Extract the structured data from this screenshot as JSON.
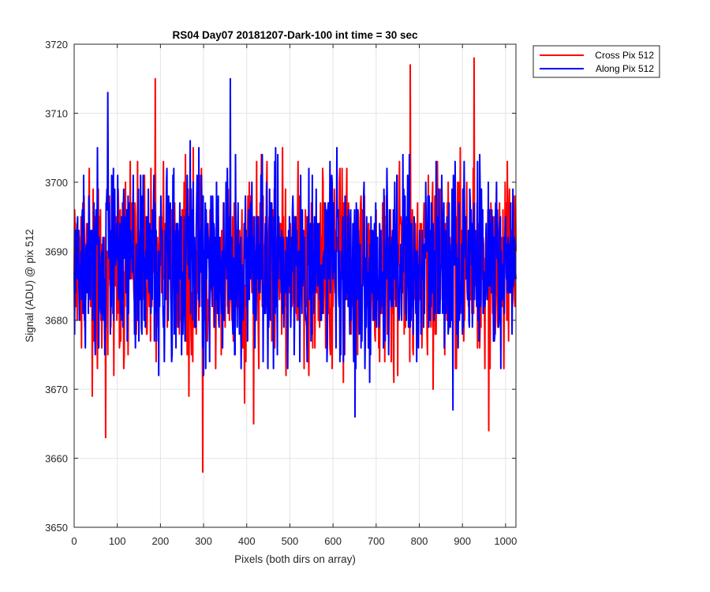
{
  "chart_data": {
    "type": "line",
    "title": "RS04 Day07 20181207-Dark-100 int time = 30 sec",
    "xlabel": "Pixels (both dirs on array)",
    "ylabel": "Signal (ADU) @ pix 512",
    "xlim": [
      0,
      1024
    ],
    "ylim": [
      3650,
      3720
    ],
    "xticks": [
      0,
      100,
      200,
      300,
      400,
      500,
      600,
      700,
      800,
      900,
      1000
    ],
    "yticks": [
      3650,
      3660,
      3670,
      3680,
      3690,
      3700,
      3710,
      3720
    ],
    "grid": true,
    "legend_position": "outside-top-right",
    "noise_summary": {
      "mean": 3688,
      "typical_range": [
        3666,
        3710
      ]
    },
    "series": [
      {
        "name": "Cross Pix 512",
        "color": "#ff0000",
        "x": [
          0,
          73,
          188,
          298,
          416,
          779,
          927,
          961,
          1024
        ],
        "y": [
          3687,
          3663,
          3715,
          3658,
          3665,
          3717,
          3718,
          3664,
          3690
        ]
      },
      {
        "name": "Along Pix 512",
        "color": "#0000ff",
        "x": [
          0,
          78,
          362,
          651,
          878,
          1024
        ],
        "y": [
          3687,
          3713,
          3715,
          3666,
          3667,
          3686
        ]
      }
    ]
  }
}
